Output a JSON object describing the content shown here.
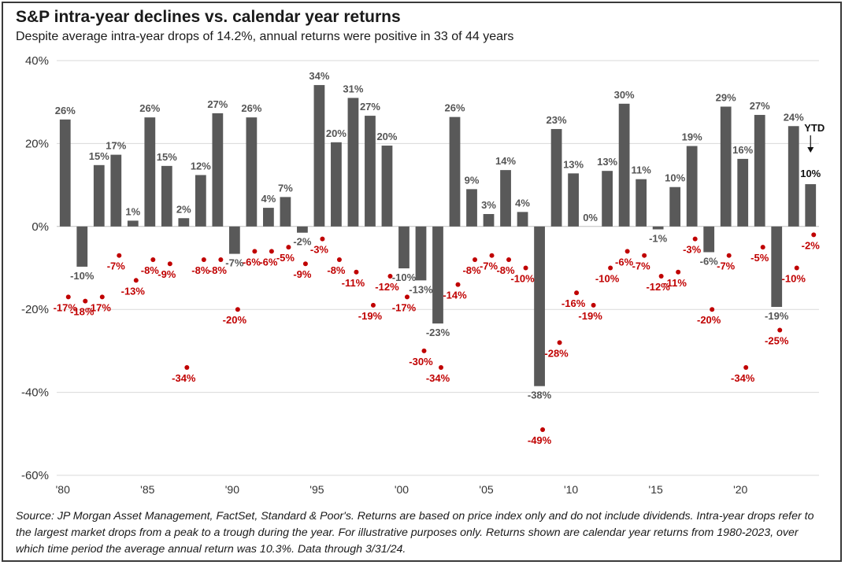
{
  "title": "S&P intra-year declines vs. calendar year returns",
  "subtitle": "Despite average intra-year drops of 14.2%, annual returns were positive in 33 of 44 years",
  "source": "Source: JP Morgan Asset Management, FactSet, Standard & Poor's. Returns are based on price index only and do not include dividends. Intra-year drops refer to the largest market drops from a peak to a trough during the year. For illustrative purposes only. Returns shown are calendar year returns from 1980-2023, over which time period the average annual return was 10.3%. Data through 3/31/24.",
  "colors": {
    "bar": "#595959",
    "drop": "#c00000",
    "grid": "#d9d9d9",
    "zero": "#bfbfbf"
  },
  "chart_data": {
    "type": "bar",
    "title": "S&P intra-year declines vs. calendar year returns",
    "xlabel": "",
    "ylabel": "",
    "ylim": [
      -60,
      40
    ],
    "grid": true,
    "y_ticks": [
      "40%",
      "20%",
      "0%",
      "-20%",
      "-40%",
      "-60%"
    ],
    "y_tick_values": [
      40,
      20,
      0,
      -20,
      -40,
      -60
    ],
    "x_tick_labels": [
      "'80",
      "'85",
      "'90",
      "'95",
      "'00",
      "'05",
      "'10",
      "'15",
      "'20"
    ],
    "x_tick_years": [
      1980,
      1985,
      1990,
      1995,
      2000,
      2005,
      2010,
      2015,
      2020
    ],
    "years": [
      1980,
      1981,
      1982,
      1983,
      1984,
      1985,
      1986,
      1987,
      1988,
      1989,
      1990,
      1991,
      1992,
      1993,
      1994,
      1995,
      1996,
      1997,
      1998,
      1999,
      2000,
      2001,
      2002,
      2003,
      2004,
      2005,
      2006,
      2007,
      2008,
      2009,
      2010,
      2011,
      2012,
      2013,
      2014,
      2015,
      2016,
      2017,
      2018,
      2019,
      2020,
      2021,
      2022,
      2023,
      2024
    ],
    "series": [
      {
        "type": "bar",
        "values": [
          25.8,
          -9.7,
          14.8,
          17.3,
          1.4,
          26.3,
          14.6,
          2.0,
          12.4,
          27.3,
          -6.6,
          26.3,
          4.5,
          7.1,
          -1.5,
          34.1,
          20.3,
          31.0,
          26.7,
          19.5,
          -10.1,
          -13.0,
          -23.4,
          26.4,
          9.0,
          3.0,
          13.6,
          3.5,
          -38.5,
          23.5,
          12.8,
          0.0,
          13.4,
          29.6,
          11.4,
          -0.7,
          9.5,
          19.4,
          -6.2,
          28.9,
          16.3,
          26.9,
          -19.4,
          24.2,
          10.2
        ],
        "labels": [
          "26%",
          "-10%",
          "15%",
          "17%",
          "1%",
          "26%",
          "15%",
          "2%",
          "12%",
          "27%",
          "-7%",
          "26%",
          "4%",
          "7%",
          "-2%",
          "34%",
          "20%",
          "31%",
          "27%",
          "20%",
          "-10%",
          "-13%",
          "-23%",
          "26%",
          "9%",
          "3%",
          "14%",
          "4%",
          "-38%",
          "23%",
          "13%",
          "0%",
          "13%",
          "30%",
          "11%",
          "-1%",
          "10%",
          "19%",
          "-6%",
          "29%",
          "16%",
          "27%",
          "-19%",
          "24%",
          "10%"
        ]
      },
      {
        "type": "scatter",
        "values": [
          -17,
          -18,
          -17,
          -7,
          -13,
          -8,
          -9,
          -34,
          -8,
          -8,
          -20,
          -6,
          -6,
          -5,
          -9,
          -3,
          -8,
          -11,
          -19,
          -12,
          -17,
          -30,
          -34,
          -14,
          -8,
          -7,
          -8,
          -10,
          -49,
          -28,
          -16,
          -19,
          -10,
          -6,
          -7,
          -12,
          -11,
          -3,
          -20,
          -7,
          -34,
          -5,
          -25,
          -10,
          -2
        ],
        "labels": [
          "-17%",
          "-18%",
          "-17%",
          "-7%",
          "-13%",
          "-8%",
          "-9%",
          "-34%",
          "-8%",
          "-8%",
          "-20%",
          "-6%",
          "-6%",
          "-5%",
          "-9%",
          "-3%",
          "-8%",
          "-11%",
          "-19%",
          "-12%",
          "-17%",
          "-30%",
          "-34%",
          "-14%",
          "-8%",
          "-7%",
          "-8%",
          "-10%",
          "-49%",
          "-28%",
          "-16%",
          "-19%",
          "-10%",
          "-6%",
          "-7%",
          "-12%",
          "-11%",
          "-3%",
          "-20%",
          "-7%",
          "-34%",
          "-5%",
          "-25%",
          "-10%",
          "-2%"
        ]
      }
    ],
    "annotation": {
      "text": "YTD",
      "year": 2024
    }
  }
}
